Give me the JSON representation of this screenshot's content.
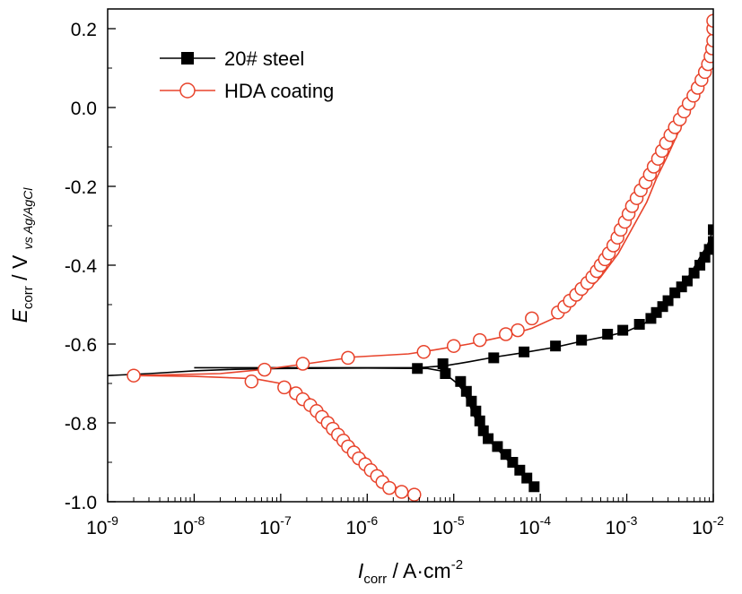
{
  "chart_data": {
    "type": "line",
    "xscale": "log",
    "xlim": [
      1e-09,
      0.01
    ],
    "ylim": [
      -1.0,
      0.25
    ],
    "xticks": [
      {
        "value": 1e-09,
        "base": "10",
        "exp": "-9"
      },
      {
        "value": 1e-08,
        "base": "10",
        "exp": "-8"
      },
      {
        "value": 1e-07,
        "base": "10",
        "exp": "-7"
      },
      {
        "value": 1e-06,
        "base": "10",
        "exp": "-6"
      },
      {
        "value": 1e-05,
        "base": "10",
        "exp": "-5"
      },
      {
        "value": 0.0001,
        "base": "10",
        "exp": "-4"
      },
      {
        "value": 0.001,
        "base": "10",
        "exp": "-3"
      },
      {
        "value": 0.01,
        "base": "10",
        "exp": "-2"
      }
    ],
    "yticks": [
      {
        "value": 0.2,
        "label": "0.2"
      },
      {
        "value": 0.0,
        "label": "0.0"
      },
      {
        "value": -0.2,
        "label": "-0.2"
      },
      {
        "value": -0.4,
        "label": "-0.4"
      },
      {
        "value": -0.6,
        "label": "-0.6"
      },
      {
        "value": -0.8,
        "label": "-0.8"
      },
      {
        "value": -1.0,
        "label": "-1.0"
      }
    ],
    "xlabel": {
      "main": "I",
      "sub": "corr",
      "unit": " / A·cm",
      "sup": "-2"
    },
    "ylabel": {
      "main": "E",
      "sub": "corr",
      "unit": " / V ",
      "sub2": "vs Ag/AgCl"
    },
    "legend_position": "top-left",
    "series": [
      {
        "name": "20# steel",
        "color": "#000000",
        "marker": "filled-square",
        "cathodic": [
          [
            1e-09,
            -0.68
          ],
          [
            3e-09,
            -0.675
          ],
          [
            1e-08,
            -0.668
          ],
          [
            3e-08,
            -0.664
          ],
          [
            1e-07,
            -0.662
          ],
          [
            1e-06,
            -0.661
          ],
          [
            5e-06,
            -0.662
          ],
          [
            8e-06,
            -0.67
          ],
          [
            9e-06,
            -0.685
          ],
          [
            1.1e-05,
            -0.7
          ],
          [
            1.3e-05,
            -0.72
          ],
          [
            1.5e-05,
            -0.75
          ],
          [
            1.7e-05,
            -0.78
          ],
          [
            2e-05,
            -0.81
          ],
          [
            2.3e-05,
            -0.835
          ],
          [
            3e-05,
            -0.86
          ],
          [
            4e-05,
            -0.89
          ],
          [
            5.5e-05,
            -0.92
          ],
          [
            7e-05,
            -0.945
          ],
          [
            8.5e-05,
            -0.965
          ]
        ],
        "anodic": [
          [
            1e-08,
            -0.66
          ],
          [
            1e-07,
            -0.66
          ],
          [
            1e-06,
            -0.66
          ],
          [
            4e-06,
            -0.66
          ],
          [
            8e-06,
            -0.655
          ],
          [
            1.5e-05,
            -0.645
          ],
          [
            3e-05,
            -0.633
          ],
          [
            6e-05,
            -0.623
          ],
          [
            0.00015,
            -0.608
          ],
          [
            0.0003,
            -0.593
          ],
          [
            0.0006,
            -0.58
          ],
          [
            0.001,
            -0.568
          ],
          [
            0.0016,
            -0.548
          ],
          [
            0.0023,
            -0.52
          ],
          [
            0.003,
            -0.49
          ],
          [
            0.0042,
            -0.455
          ],
          [
            0.0055,
            -0.42
          ],
          [
            0.007,
            -0.38
          ],
          [
            0.0085,
            -0.35
          ],
          [
            0.01,
            -0.31
          ]
        ],
        "markers": [
          [
            3.8e-06,
            -0.662
          ],
          [
            7.5e-06,
            -0.65
          ],
          [
            8e-06,
            -0.675
          ],
          [
            1.2e-05,
            -0.695
          ],
          [
            1.4e-05,
            -0.72
          ],
          [
            1.6e-05,
            -0.745
          ],
          [
            1.8e-05,
            -0.77
          ],
          [
            2e-05,
            -0.795
          ],
          [
            2.2e-05,
            -0.82
          ],
          [
            2.5e-05,
            -0.84
          ],
          [
            3.2e-05,
            -0.86
          ],
          [
            4e-05,
            -0.88
          ],
          [
            4.8e-05,
            -0.9
          ],
          [
            5.8e-05,
            -0.92
          ],
          [
            7e-05,
            -0.94
          ],
          [
            8.5e-05,
            -0.962
          ],
          [
            2.9e-05,
            -0.635
          ],
          [
            6.5e-05,
            -0.62
          ],
          [
            0.00015,
            -0.605
          ],
          [
            0.0003,
            -0.59
          ],
          [
            0.0006,
            -0.575
          ],
          [
            0.0009,
            -0.565
          ],
          [
            0.0014,
            -0.55
          ],
          [
            0.0019,
            -0.535
          ],
          [
            0.0022,
            -0.52
          ],
          [
            0.0026,
            -0.505
          ],
          [
            0.003,
            -0.49
          ],
          [
            0.0036,
            -0.47
          ],
          [
            0.0043,
            -0.455
          ],
          [
            0.005,
            -0.44
          ],
          [
            0.006,
            -0.42
          ],
          [
            0.007,
            -0.4
          ],
          [
            0.008,
            -0.38
          ],
          [
            0.009,
            -0.36
          ],
          [
            0.01,
            -0.34
          ],
          [
            0.01,
            -0.31
          ]
        ]
      },
      {
        "name": "HDA coating",
        "color": "#e8432b",
        "marker": "open-circle",
        "cathodic": [
          [
            2e-09,
            -0.68
          ],
          [
            1e-08,
            -0.682
          ],
          [
            5e-08,
            -0.688
          ],
          [
            1e-07,
            -0.7
          ],
          [
            2e-07,
            -0.73
          ],
          [
            3e-07,
            -0.77
          ],
          [
            5e-07,
            -0.82
          ],
          [
            8e-07,
            -0.87
          ],
          [
            1.2e-06,
            -0.91
          ],
          [
            1.8e-06,
            -0.95
          ],
          [
            2.5e-06,
            -0.975
          ],
          [
            3.5e-06,
            -0.982
          ]
        ],
        "anodic": [
          [
            2e-09,
            -0.68
          ],
          [
            2e-08,
            -0.675
          ],
          [
            6e-08,
            -0.665
          ],
          [
            2e-07,
            -0.65
          ],
          [
            7e-07,
            -0.633
          ],
          [
            3e-06,
            -0.625
          ],
          [
            6e-06,
            -0.615
          ],
          [
            1.5e-05,
            -0.6
          ],
          [
            4e-05,
            -0.58
          ],
          [
            8e-05,
            -0.56
          ],
          [
            0.00016,
            -0.53
          ],
          [
            0.0003,
            -0.48
          ],
          [
            0.0005,
            -0.43
          ],
          [
            0.0008,
            -0.37
          ],
          [
            0.0012,
            -0.3
          ],
          [
            0.0017,
            -0.24
          ],
          [
            0.0022,
            -0.18
          ],
          [
            0.003,
            -0.12
          ],
          [
            0.004,
            -0.06
          ],
          [
            0.0055,
            0.0
          ],
          [
            0.007,
            0.05
          ],
          [
            0.0085,
            0.1
          ],
          [
            0.0095,
            0.15
          ],
          [
            0.01,
            0.22
          ]
        ],
        "markers": [
          [
            2e-09,
            -0.68
          ],
          [
            6.5e-08,
            -0.665
          ],
          [
            1.8e-07,
            -0.65
          ],
          [
            6e-07,
            -0.635
          ],
          [
            4.5e-06,
            -0.62
          ],
          [
            1e-05,
            -0.605
          ],
          [
            2e-05,
            -0.59
          ],
          [
            4e-05,
            -0.575
          ],
          [
            5.5e-05,
            -0.565
          ],
          [
            8e-05,
            -0.535
          ],
          [
            4.6e-08,
            -0.695
          ],
          [
            1.1e-07,
            -0.71
          ],
          [
            1.5e-07,
            -0.725
          ],
          [
            1.8e-07,
            -0.74
          ],
          [
            2.2e-07,
            -0.755
          ],
          [
            2.6e-07,
            -0.77
          ],
          [
            3e-07,
            -0.785
          ],
          [
            3.5e-07,
            -0.8
          ],
          [
            4e-07,
            -0.815
          ],
          [
            4.6e-07,
            -0.83
          ],
          [
            5.3e-07,
            -0.845
          ],
          [
            6e-07,
            -0.86
          ],
          [
            7e-07,
            -0.875
          ],
          [
            8e-07,
            -0.89
          ],
          [
            9.5e-07,
            -0.905
          ],
          [
            1.1e-06,
            -0.92
          ],
          [
            1.3e-06,
            -0.935
          ],
          [
            1.5e-06,
            -0.95
          ],
          [
            1.8e-06,
            -0.965
          ],
          [
            2.5e-06,
            -0.975
          ],
          [
            3.5e-06,
            -0.982
          ],
          [
            0.00016,
            -0.52
          ],
          [
            0.00019,
            -0.505
          ],
          [
            0.00022,
            -0.49
          ],
          [
            0.00026,
            -0.475
          ],
          [
            0.0003,
            -0.46
          ],
          [
            0.00035,
            -0.445
          ],
          [
            0.0004,
            -0.43
          ],
          [
            0.00045,
            -0.415
          ],
          [
            0.0005,
            -0.4
          ],
          [
            0.00056,
            -0.385
          ],
          [
            0.00062,
            -0.37
          ],
          [
            0.0007,
            -0.35
          ],
          [
            0.00078,
            -0.33
          ],
          [
            0.00085,
            -0.31
          ],
          [
            0.00095,
            -0.29
          ],
          [
            0.00105,
            -0.27
          ],
          [
            0.00115,
            -0.25
          ],
          [
            0.0013,
            -0.23
          ],
          [
            0.00145,
            -0.21
          ],
          [
            0.00165,
            -0.19
          ],
          [
            0.00185,
            -0.17
          ],
          [
            0.00205,
            -0.15
          ],
          [
            0.0023,
            -0.13
          ],
          [
            0.00255,
            -0.11
          ],
          [
            0.00285,
            -0.09
          ],
          [
            0.0032,
            -0.07
          ],
          [
            0.0036,
            -0.05
          ],
          [
            0.0041,
            -0.03
          ],
          [
            0.0046,
            -0.01
          ],
          [
            0.0052,
            0.01
          ],
          [
            0.0059,
            0.03
          ],
          [
            0.0066,
            0.05
          ],
          [
            0.0073,
            0.07
          ],
          [
            0.008,
            0.09
          ],
          [
            0.0087,
            0.11
          ],
          [
            0.0093,
            0.13
          ],
          [
            0.0097,
            0.15
          ],
          [
            0.01,
            0.17
          ],
          [
            0.01,
            0.2
          ],
          [
            0.01,
            0.22
          ]
        ]
      }
    ]
  }
}
